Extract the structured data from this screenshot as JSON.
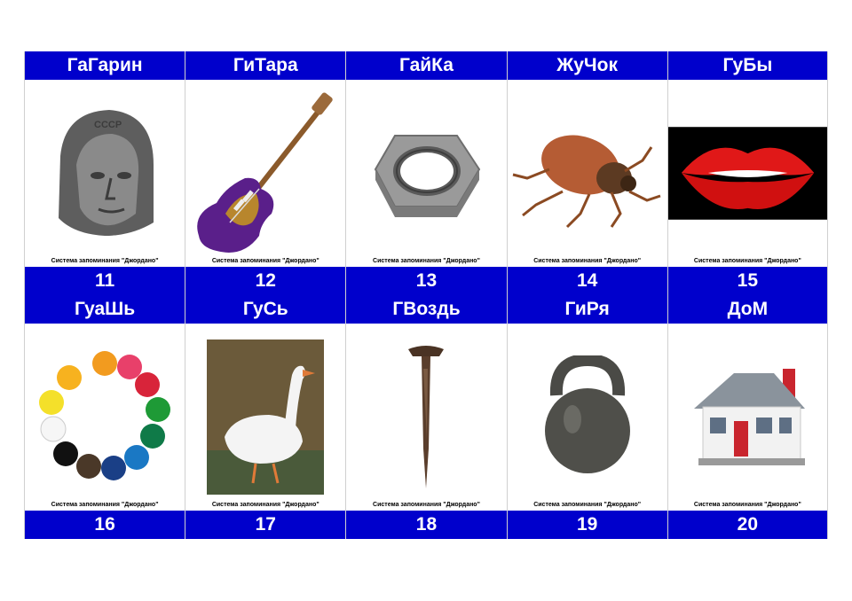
{
  "caption": "Система запоминания \"Джордано\"",
  "accent_color": "#0000cc",
  "cards": [
    {
      "word": "ГаГарин",
      "number": "11",
      "icon": "cosmonaut-bust-icon"
    },
    {
      "word": "ГиТара",
      "number": "12",
      "icon": "electric-guitar-icon"
    },
    {
      "word": "ГайКа",
      "number": "13",
      "icon": "hex-nut-icon"
    },
    {
      "word": "ЖуЧок",
      "number": "14",
      "icon": "beetle-icon"
    },
    {
      "word": "ГуБы",
      "number": "15",
      "icon": "lips-icon"
    },
    {
      "word": "ГуаШь",
      "number": "16",
      "icon": "paint-jars-icon"
    },
    {
      "word": "ГуСь",
      "number": "17",
      "icon": "goose-icon"
    },
    {
      "word": "ГВоздь",
      "number": "18",
      "icon": "nail-icon"
    },
    {
      "word": "ГиРя",
      "number": "19",
      "icon": "kettlebell-icon"
    },
    {
      "word": "ДоМ",
      "number": "20",
      "icon": "house-icon"
    }
  ]
}
